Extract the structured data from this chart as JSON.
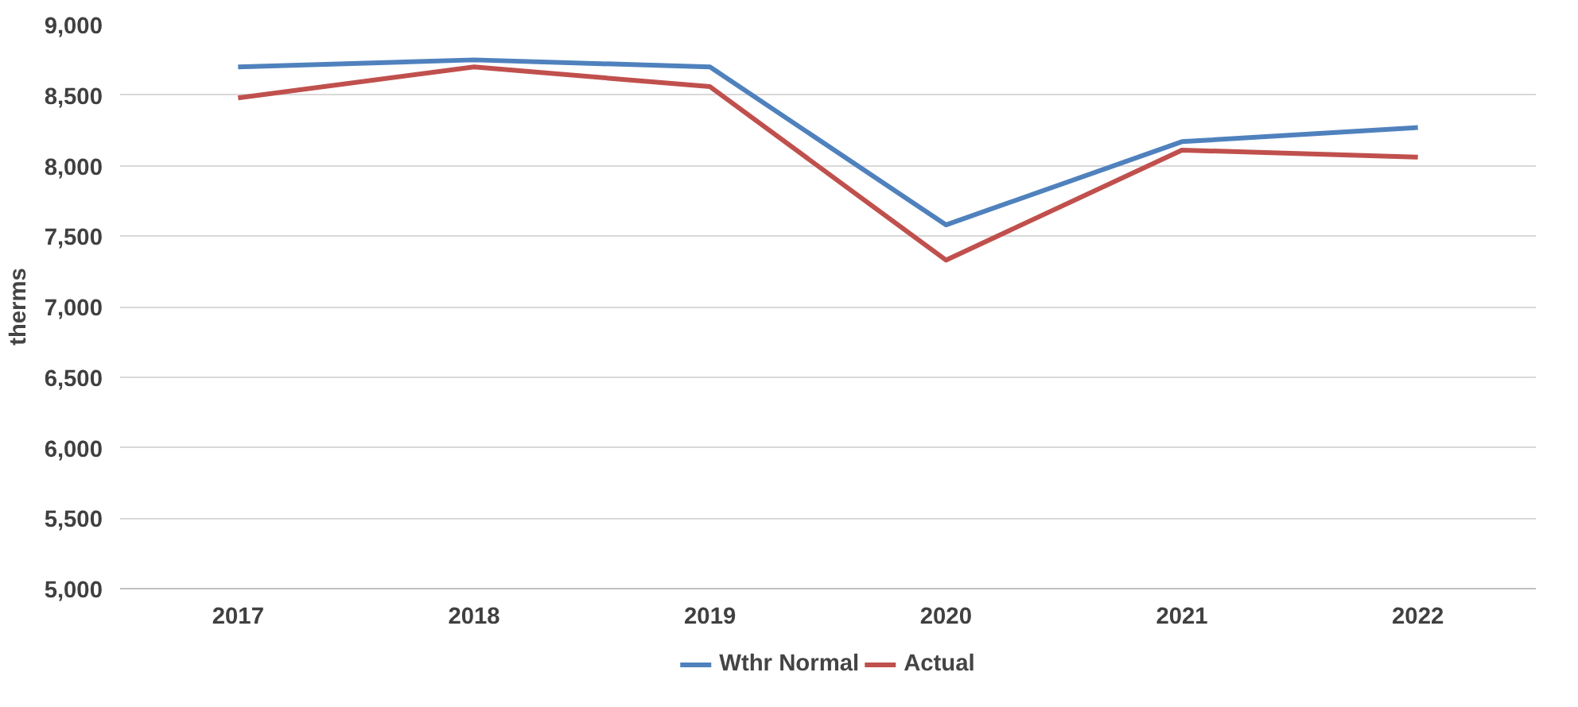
{
  "chart_data": {
    "type": "line",
    "ylabel": "therms",
    "categories": [
      "2017",
      "2018",
      "2019",
      "2020",
      "2021",
      "2022"
    ],
    "series": [
      {
        "name": "Wthr Normal",
        "color": "#4f81bd",
        "values": [
          8700,
          8750,
          8700,
          7580,
          8170,
          8270
        ]
      },
      {
        "name": "Actual",
        "color": "#c0504d",
        "values": [
          8480,
          8700,
          8560,
          7330,
          8110,
          8060
        ]
      }
    ],
    "ylim": [
      5000,
      9000
    ],
    "yticks": [
      {
        "value": 5000,
        "label": "5,000"
      },
      {
        "value": 5500,
        "label": "5,500"
      },
      {
        "value": 6000,
        "label": "6,000"
      },
      {
        "value": 6500,
        "label": "6,500"
      },
      {
        "value": 7000,
        "label": "7,000"
      },
      {
        "value": 7500,
        "label": "7,500"
      },
      {
        "value": 8000,
        "label": "8,000"
      },
      {
        "value": 8500,
        "label": "8,500"
      },
      {
        "value": 9000,
        "label": "9,000"
      }
    ],
    "grid": "y",
    "legend": "bottom",
    "marker": "none",
    "line_style": "solid"
  }
}
